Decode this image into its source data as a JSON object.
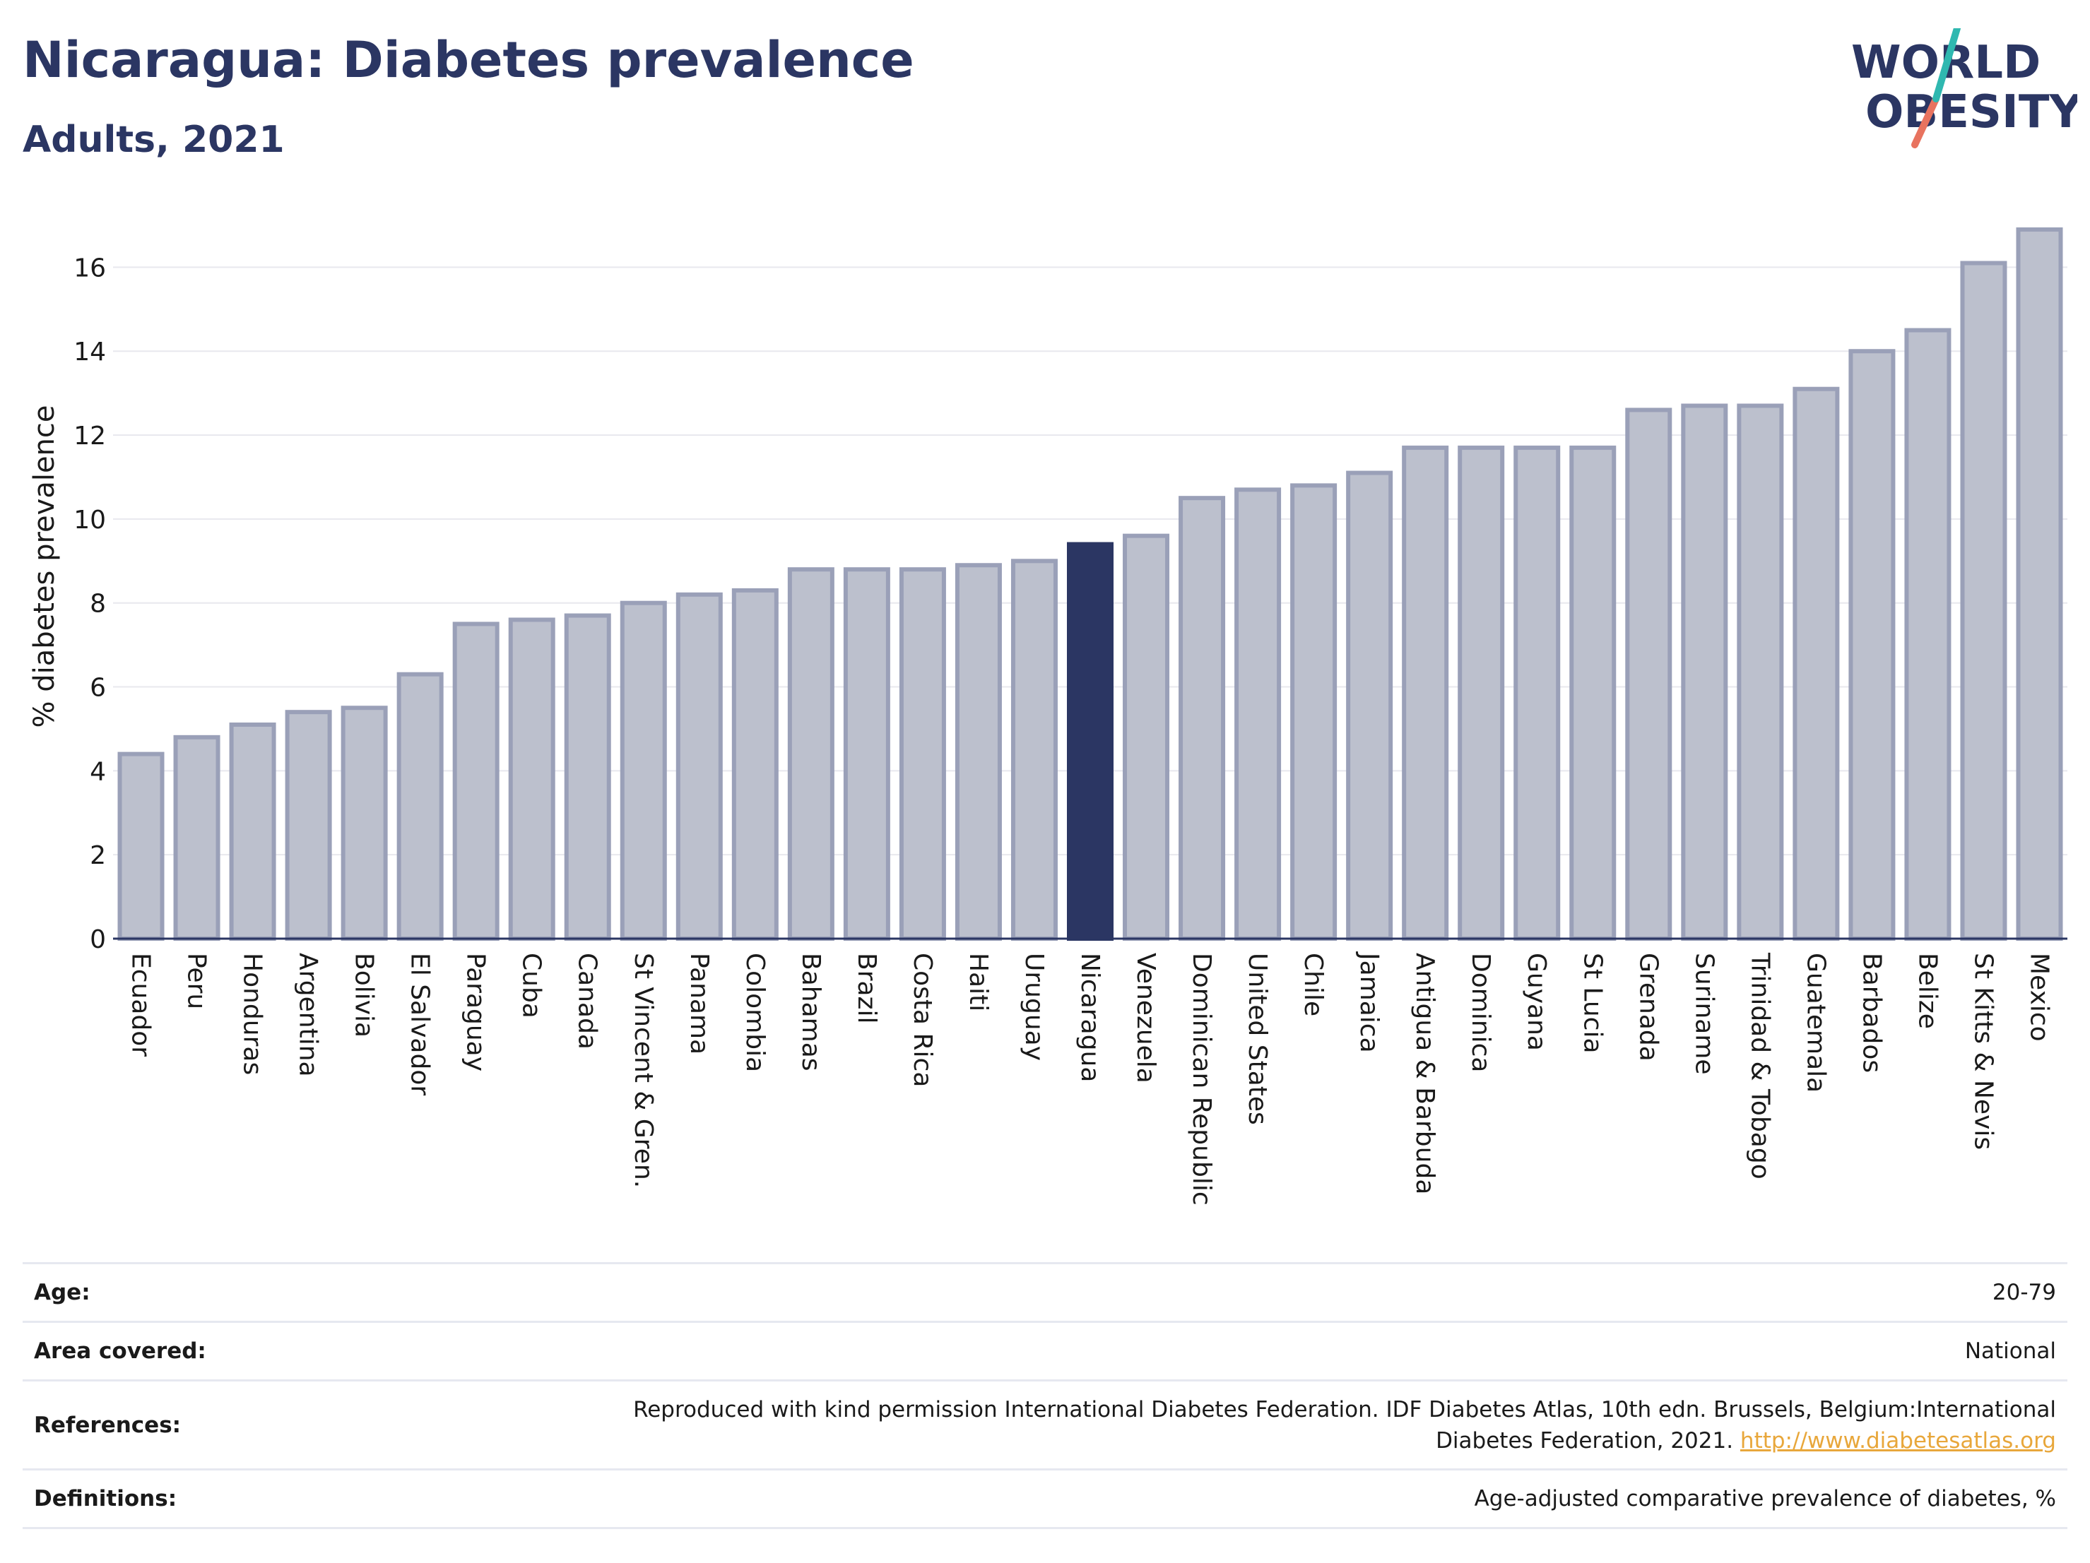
{
  "header": {
    "title": "Nicaragua: Diabetes prevalence",
    "subtitle": "Adults, 2021"
  },
  "logo": {
    "line1": "WORLD",
    "line2": "OBESITY"
  },
  "colors": {
    "bar": "#bcc0cd",
    "bar_edge": "#9aa0b8",
    "highlight": "#2b3663",
    "grid": "#e8e8ee",
    "title": "#2b3663",
    "link": "#e8a73b"
  },
  "chart_data": {
    "type": "bar",
    "ylabel": "% diabetes prevalence",
    "xlabel": "",
    "ylim": [
      0,
      17
    ],
    "yticks": [
      0,
      2,
      4,
      6,
      8,
      10,
      12,
      14,
      16
    ],
    "grid": true,
    "highlight": "Nicaragua",
    "categories": [
      "Ecuador",
      "Peru",
      "Honduras",
      "Argentina",
      "Bolivia",
      "El Salvador",
      "Paraguay",
      "Cuba",
      "Canada",
      "St Vincent & Gren.",
      "Panama",
      "Colombia",
      "Bahamas",
      "Brazil",
      "Costa Rica",
      "Haiti",
      "Uruguay",
      "Nicaragua",
      "Venezuela",
      "Dominican Republic",
      "United States",
      "Chile",
      "Jamaica",
      "Antigua & Barbuda",
      "Dominica",
      "Guyana",
      "St Lucia",
      "Grenada",
      "Suriname",
      "Trinidad & Tobago",
      "Guatemala",
      "Barbados",
      "Belize",
      "St Kitts & Nevis",
      "Mexico"
    ],
    "values": [
      4.4,
      4.8,
      5.1,
      5.4,
      5.5,
      6.3,
      7.5,
      7.6,
      7.7,
      8.0,
      8.2,
      8.3,
      8.8,
      8.8,
      8.8,
      8.9,
      9.0,
      9.4,
      9.6,
      10.5,
      10.7,
      10.8,
      11.1,
      11.7,
      11.7,
      11.7,
      11.7,
      12.6,
      12.7,
      12.7,
      13.1,
      14.0,
      14.5,
      16.1,
      16.9
    ]
  },
  "info": [
    {
      "label": "Age:",
      "value": "20-79"
    },
    {
      "label": "Area covered:",
      "value": "National"
    },
    {
      "label": "References:",
      "value": "Reproduced with kind permission International Diabetes Federation.  IDF Diabetes Atlas, 10th edn. Brussels, Belgium:International Diabetes Federation, 2021. ",
      "link": "http://www.diabetesatlas.org"
    },
    {
      "label": "Definitions:",
      "value": "Age-adjusted comparative prevalence of diabetes, %"
    }
  ]
}
